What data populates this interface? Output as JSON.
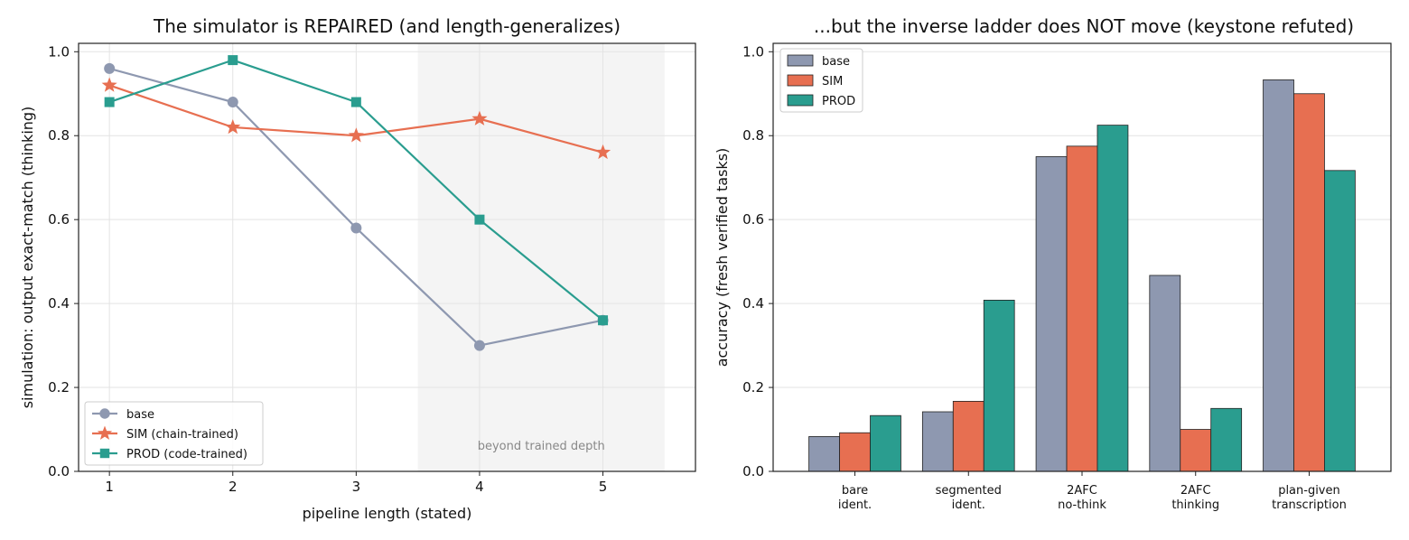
{
  "chart_data": [
    {
      "type": "line",
      "title": "The simulator is REPAIRED (and length-generalizes)",
      "xlabel": "pipeline length (stated)",
      "ylabel": "simulation: output exact-match (thinking)",
      "x": [
        1,
        2,
        3,
        4,
        5
      ],
      "xticks": [
        "1",
        "2",
        "3",
        "4",
        "5"
      ],
      "xlim": [
        0.75,
        5.75
      ],
      "ylim": [
        0.0,
        1.02
      ],
      "yticks": [
        "0.0",
        "0.2",
        "0.4",
        "0.6",
        "0.8",
        "1.0"
      ],
      "grid": true,
      "legend_position": "lower-left",
      "shaded_region": {
        "x_from": 3.5,
        "x_to": 5.5,
        "label": "beyond trained depth"
      },
      "series": [
        {
          "name": "base",
          "color": "#8e98b0",
          "marker": "circle",
          "values": [
            0.96,
            0.88,
            0.58,
            0.3,
            0.36
          ]
        },
        {
          "name": "SIM (chain-trained)",
          "color": "#e76f51",
          "marker": "star",
          "values": [
            0.92,
            0.82,
            0.8,
            0.84,
            0.76
          ]
        },
        {
          "name": "PROD (code-trained)",
          "color": "#2a9d8f",
          "marker": "square",
          "values": [
            0.88,
            0.98,
            0.88,
            0.6,
            0.36
          ]
        }
      ]
    },
    {
      "type": "bar",
      "title": "...but the inverse ladder does NOT move (keystone refuted)",
      "xlabel": "",
      "ylabel": "accuracy (fresh verified tasks)",
      "categories": [
        [
          "bare",
          "ident."
        ],
        [
          "segmented",
          "ident."
        ],
        [
          "2AFC",
          "no-think"
        ],
        [
          "2AFC",
          "thinking"
        ],
        [
          "plan-given",
          "transcription"
        ]
      ],
      "ylim": [
        0.0,
        1.02
      ],
      "yticks": [
        "0.0",
        "0.2",
        "0.4",
        "0.6",
        "0.8",
        "1.0"
      ],
      "grid": true,
      "legend_position": "upper-left",
      "series": [
        {
          "name": "base",
          "color": "#8e98b0",
          "values": [
            0.083,
            0.142,
            0.75,
            0.467,
            0.933
          ]
        },
        {
          "name": "SIM",
          "color": "#e76f51",
          "values": [
            0.092,
            0.167,
            0.775,
            0.1,
            0.9
          ]
        },
        {
          "name": "PROD",
          "color": "#2a9d8f",
          "values": [
            0.133,
            0.408,
            0.825,
            0.15,
            0.717
          ]
        }
      ]
    }
  ]
}
